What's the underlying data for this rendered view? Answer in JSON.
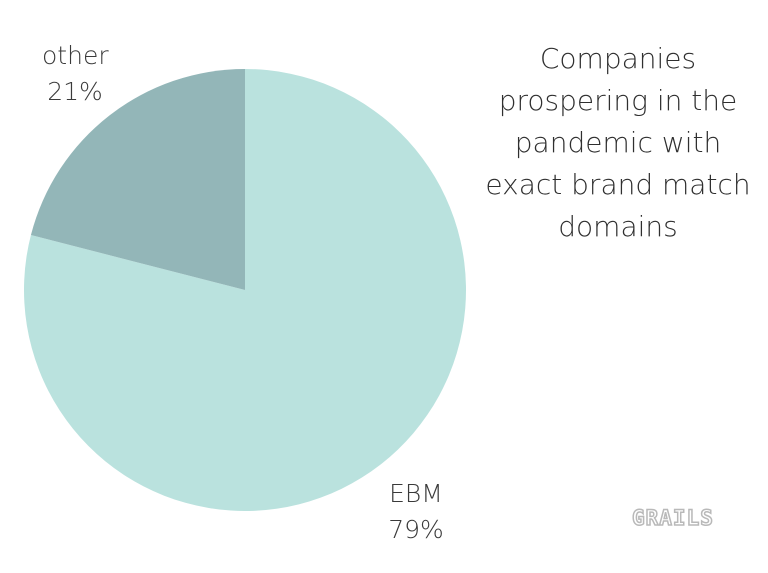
{
  "chart_data": {
    "type": "pie",
    "title": "Companies prospering in the pandemic with exact brand match domains",
    "slices": [
      {
        "label": "EBM",
        "value": 79,
        "value_label": "79%",
        "color": "#bae2de"
      },
      {
        "label": "other",
        "value": 21,
        "value_label": "21%",
        "color": "#93b6b8"
      }
    ],
    "start_angle": "12 o'clock",
    "direction": "clockwise",
    "legend": "none",
    "data_labels": "outside"
  },
  "watermark": "GRAILS"
}
